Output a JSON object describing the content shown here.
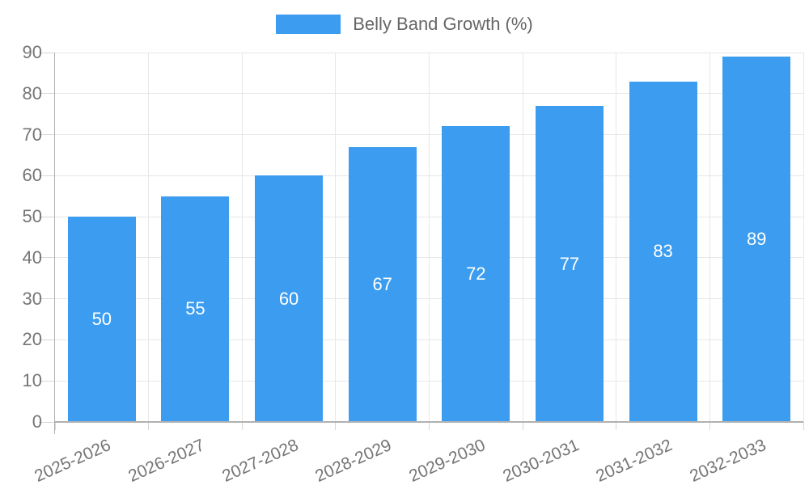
{
  "chart_data": {
    "type": "bar",
    "title": "Belly Band Growth (%)",
    "legend": {
      "position": "top",
      "label": "Belly Band Growth (%)"
    },
    "categories": [
      "2025-2026",
      "2026-2027",
      "2027-2028",
      "2028-2029",
      "2029-2030",
      "2030-2031",
      "2031-2032",
      "2032-2033"
    ],
    "series": [
      {
        "name": "Belly Band Growth (%)",
        "values": [
          50,
          55,
          60,
          67,
          72,
          77,
          83,
          89
        ]
      }
    ],
    "bar_value_labels": [
      "50",
      "55",
      "60",
      "67",
      "72",
      "77",
      "83",
      "89"
    ],
    "xlabel": "",
    "ylabel": "",
    "ylim": [
      0,
      90
    ],
    "yticks": [
      0,
      10,
      20,
      30,
      40,
      50,
      60,
      70,
      80,
      90
    ],
    "grid": true,
    "colors": {
      "bar": "#3b9cf0",
      "grid": "#e7e7e7",
      "tick": "#d6d6d6",
      "axis": "#b1b1b1",
      "tick_label": "#757575",
      "legend_text": "#666666",
      "value_label": "#ffffff",
      "background": "#ffffff"
    }
  }
}
